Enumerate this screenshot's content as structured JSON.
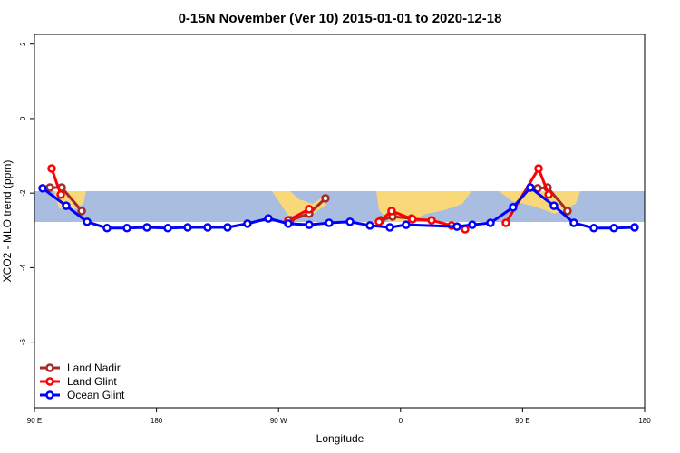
{
  "chart_data": {
    "type": "line",
    "title": "0-15N November (Ver 10)   2015-01-01 to 2020-12-18",
    "x_label": "Longitude",
    "y_label": "XCO2 - MLO trend (ppm)",
    "xlim": [
      90,
      540
    ],
    "xticks": [
      {
        "value": 90,
        "label": "90 E"
      },
      {
        "value": 180,
        "label": "180"
      },
      {
        "value": 270,
        "label": "90 W"
      },
      {
        "value": 360,
        "label": "0"
      },
      {
        "value": 450,
        "label": "90 E"
      },
      {
        "value": 540,
        "label": "180"
      }
    ],
    "ylim": [
      -7.76,
      2.26
    ],
    "yticks": [
      2,
      0,
      -2,
      -4,
      -6
    ],
    "legend": "bottom-left",
    "series": [
      {
        "name": "Land Nadir",
        "color": "#a52a2a",
        "x": [
          101.4,
          110.1,
          124.8,
          null,
          278.6,
          292.6,
          304.6,
          null,
          345.4,
          354.1,
          368.2,
          null,
          461.1,
          468.4,
          483.1
        ],
        "values": [
          -1.85,
          -1.85,
          -2.48,
          null,
          -2.73,
          -2.55,
          -2.14,
          null,
          -2.73,
          -2.63,
          -2.68,
          null,
          -1.87,
          -1.85,
          -2.48
        ]
      },
      {
        "name": "Land Glint",
        "color": "#ff0000",
        "x": [
          102.7,
          109.4,
          null,
          277.2,
          292.6,
          null,
          344.1,
          353.4,
          368.8,
          382.9,
          397.6,
          407.6,
          null,
          437.7,
          461.8,
          469.2
        ],
        "values": [
          -1.34,
          -2.04,
          null,
          -2.73,
          -2.43,
          null,
          -2.77,
          -2.48,
          -2.7,
          -2.73,
          -2.87,
          -2.97,
          null,
          -2.8,
          -1.34,
          -2.04
        ]
      },
      {
        "name": "Ocean Glint",
        "color": "#0000ff",
        "x": [
          96.0,
          113.4,
          128.8,
          143.5,
          158.2,
          172.9,
          188.3,
          203.0,
          217.7,
          232.4,
          247.1,
          262.5,
          277.2,
          292.6,
          307.3,
          322.7,
          337.4,
          352.1,
          364.1,
          401.6,
          412.9,
          426.3,
          443.0,
          455.7,
          473.1,
          487.8,
          502.5,
          517.3,
          532.6
        ],
        "values": [
          -1.87,
          -2.34,
          -2.77,
          -2.94,
          -2.94,
          -2.92,
          -2.94,
          -2.92,
          -2.92,
          -2.92,
          -2.82,
          -2.68,
          -2.82,
          -2.85,
          -2.8,
          -2.77,
          -2.87,
          -2.92,
          -2.85,
          -2.9,
          -2.85,
          -2.8,
          -2.38,
          -1.85,
          -2.34,
          -2.8,
          -2.94,
          -2.94,
          -2.92
        ]
      }
    ]
  }
}
